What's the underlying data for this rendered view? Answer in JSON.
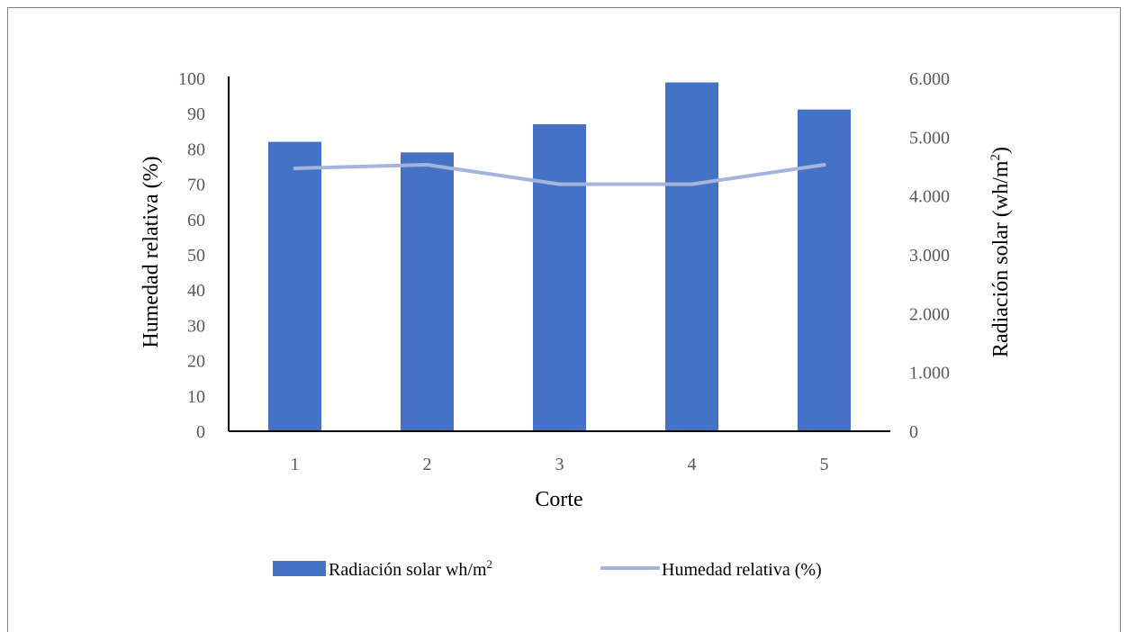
{
  "chart_data": {
    "type": "bar+line",
    "categories": [
      "1",
      "2",
      "3",
      "4",
      "5"
    ],
    "series": [
      {
        "name": "Radiación solar wh/m",
        "name_superscript": "2",
        "type": "bar",
        "axis": "right",
        "values": [
          4920,
          4740,
          5220,
          5930,
          5470
        ],
        "color": "#4472c4"
      },
      {
        "name": "Humedad relativa (%)",
        "type": "line",
        "axis": "left",
        "values": [
          74.5,
          75.5,
          70,
          70,
          75.5
        ],
        "color": "#a5b4dc"
      }
    ],
    "xlabel": "Corte",
    "ylabel_left": "Humedad relativa (%)",
    "ylabel_right": "Radiación solar (wh/m",
    "ylabel_right_superscript": "2",
    "ylabel_right_suffix": ")",
    "ylim_left": [
      0,
      100
    ],
    "ylim_right": [
      0,
      6000
    ],
    "yticks_left": [
      "0",
      "10",
      "20",
      "30",
      "40",
      "50",
      "60",
      "70",
      "80",
      "90",
      "100"
    ],
    "yticks_right": [
      "0",
      "1.000",
      "2.000",
      "3.000",
      "4.000",
      "5.000",
      "6.000"
    ],
    "grid": false,
    "legend_position": "bottom"
  }
}
